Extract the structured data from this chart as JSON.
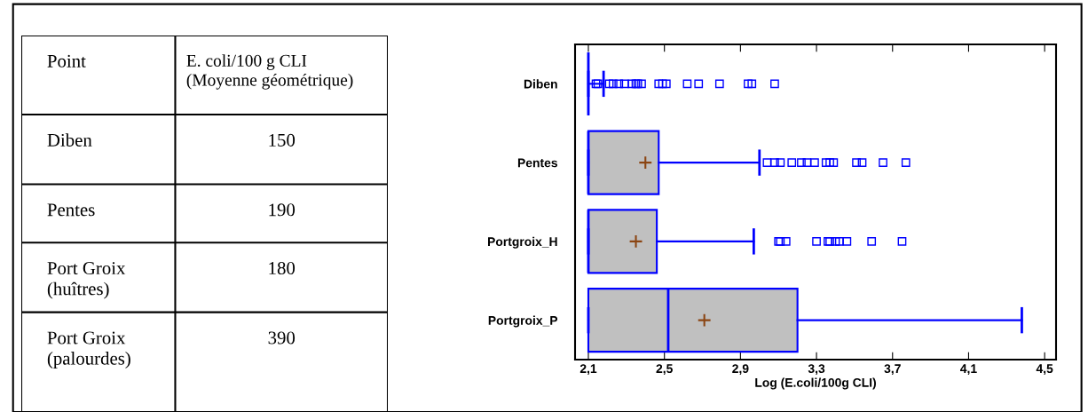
{
  "chart_data": [
    {
      "type": "other",
      "annotations": [
        "Point",
        "E. coli/100 g CLI\n(Moyenne géométrique)",
        "Diben",
        "150",
        "Pentes",
        "190",
        "Port Groix\n(huîtres)",
        "180",
        "Port Groix\n(palourdes)",
        "390"
      ]
    },
    {
      "type": "box",
      "orientation": "horizontal",
      "xlabel": "Log (E.coli/100g CLI)",
      "categories": [
        "Diben",
        "Pentes",
        "Portgroix_H",
        "Portgroix_P"
      ],
      "color": "#0000ff",
      "xlim": [
        2.03,
        4.56
      ],
      "xticks": [
        {
          "value": 2.1,
          "label": "2,1"
        },
        {
          "value": 2.5,
          "label": "2,5"
        },
        {
          "value": 2.9,
          "label": "2,9"
        },
        {
          "value": 3.3,
          "label": "3,3"
        },
        {
          "value": 3.7,
          "label": "3,7"
        },
        {
          "value": 4.1,
          "label": "4,1"
        },
        {
          "value": 4.5,
          "label": "4,5"
        }
      ],
      "grid": false,
      "boxes": [
        {
          "low": 2.1,
          "q1": 2.1,
          "median": 2.1,
          "q3": 2.1,
          "high": 2.18,
          "outliers": [
            2.14,
            2.15,
            2.21,
            2.23,
            2.26,
            2.29,
            2.33,
            2.35,
            2.36,
            2.38,
            2.47,
            2.49,
            2.51,
            2.62,
            2.68,
            2.79,
            2.94,
            2.96,
            3.08
          ]
        },
        {
          "low": 2.1,
          "q1": 2.1,
          "median": 2.1,
          "q3": 2.47,
          "high": 3.0,
          "mean": 2.4,
          "outliers": [
            3.04,
            3.08,
            3.11,
            3.17,
            3.22,
            3.25,
            3.29,
            3.35,
            3.37,
            3.39,
            3.51,
            3.54,
            3.65,
            3.77
          ]
        },
        {
          "low": 2.1,
          "q1": 2.1,
          "median": 2.1,
          "q3": 2.46,
          "high": 2.97,
          "mean": 2.35,
          "outliers": [
            3.1,
            3.11,
            3.14,
            3.3,
            3.36,
            3.37,
            3.4,
            3.42,
            3.46,
            3.59,
            3.75
          ]
        },
        {
          "low": 2.1,
          "q1": 2.1,
          "median": 2.52,
          "q3": 3.2,
          "high": 4.38,
          "mean": 2.71
        }
      ]
    }
  ]
}
